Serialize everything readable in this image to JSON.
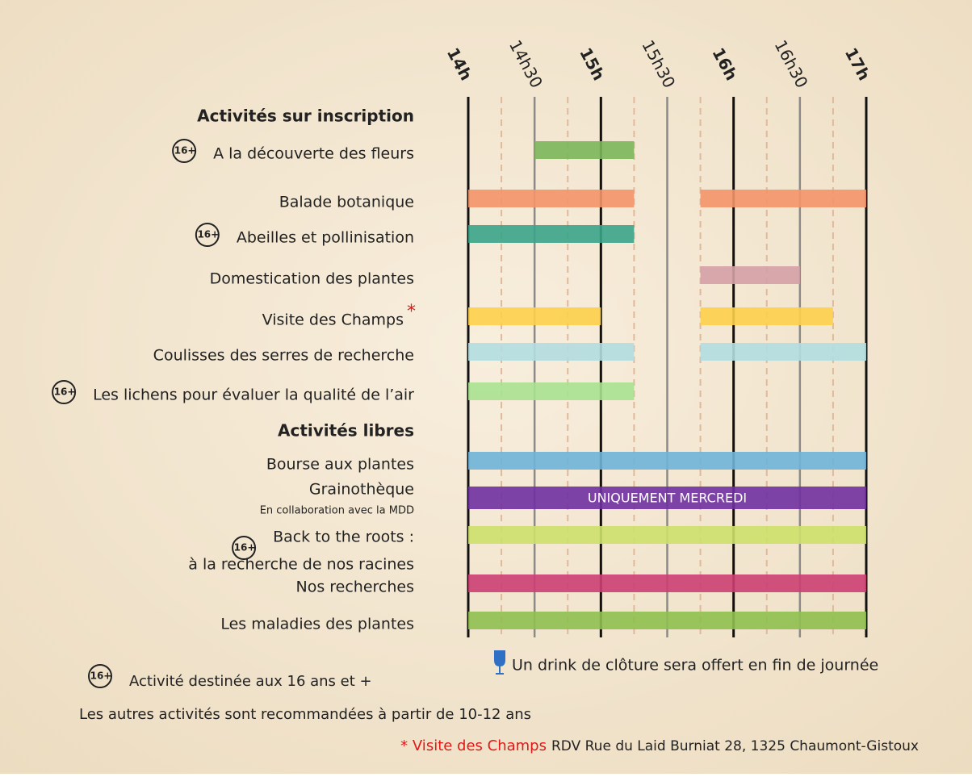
{
  "chart_data": {
    "type": "gantt",
    "xlim": [
      14,
      17
    ],
    "xticks": [
      {
        "value": 14,
        "label": "14h"
      },
      {
        "value": 14.5,
        "label": "14h30"
      },
      {
        "value": 15,
        "label": "15h"
      },
      {
        "value": 15.5,
        "label": "15h30"
      },
      {
        "value": 16,
        "label": "16h"
      },
      {
        "value": 16.5,
        "label": "16h30"
      },
      {
        "value": 17,
        "label": "17h"
      }
    ],
    "minor_xticks": [
      14.25,
      14.75,
      15.25,
      15.75,
      16.25,
      16.75
    ],
    "sections": [
      "Activités sur inscription",
      "Activités libres"
    ],
    "badge_label": "16+",
    "tasks": [
      {
        "section": 0,
        "label": "A la découverte des fleurs",
        "age_16_plus": true,
        "color": "#7cb65a",
        "segments": [
          [
            14.5,
            15.25
          ]
        ]
      },
      {
        "section": 0,
        "label": "Balade botanique",
        "color": "#f4956a",
        "segments": [
          [
            14,
            15.25
          ],
          [
            15.75,
            17
          ]
        ]
      },
      {
        "section": 0,
        "label": "Abeilles et pollinisation",
        "age_16_plus": true,
        "color": "#3aa488",
        "segments": [
          [
            14,
            15.25
          ]
        ]
      },
      {
        "section": 0,
        "label": "Domestication des plantes",
        "color": "#d4a0a6",
        "segments": [
          [
            15.75,
            16.5
          ]
        ]
      },
      {
        "section": 0,
        "label": "Visite des Champs",
        "marker": "*",
        "color": "#fdd04a",
        "segments": [
          [
            14,
            15
          ],
          [
            15.75,
            16.75
          ]
        ]
      },
      {
        "section": 0,
        "label": "Coulisses des serres de recherche",
        "color": "#b2dde0",
        "segments": [
          [
            14,
            15.25
          ],
          [
            15.75,
            17
          ]
        ]
      },
      {
        "section": 0,
        "label": "Les lichens pour évaluer la qualité de l’air",
        "age_16_plus": true,
        "color": "#a8e190",
        "segments": [
          [
            14,
            15.25
          ]
        ]
      },
      {
        "section": 1,
        "label": "Bourse aux plantes",
        "color": "#6fb2d8",
        "segments": [
          [
            14,
            17
          ]
        ]
      },
      {
        "section": 1,
        "label": "Grainothèque",
        "note": "En collaboration avec la MDD",
        "bar_text": "UNIQUEMENT MERCREDI",
        "color": "#7030a0",
        "segments": [
          [
            14,
            17
          ]
        ]
      },
      {
        "section": 1,
        "label": "Back to the roots :",
        "label2": "à la recherche de nos racines",
        "age_16_plus": true,
        "color": "#cde06a",
        "segments": [
          [
            14,
            17
          ]
        ]
      },
      {
        "section": 1,
        "label": "Nos recherches",
        "color": "#cc3f73",
        "segments": [
          [
            14,
            17
          ]
        ]
      },
      {
        "section": 1,
        "label": "Les maladies des plantes",
        "color": "#8fbf4f",
        "segments": [
          [
            14,
            17
          ]
        ]
      }
    ],
    "drink_note": "Un drink de clôture sera offert en fin de journée",
    "badge_note": "Activité destinée aux 16 ans et +",
    "age_note": "Les autres activités sont recommandées à partir de 10-12 ans",
    "footnote_name": "* Visite des Champs",
    "footnote_text": "RDV Rue du Laid Burniat 28, 1325 Chaumont-Gistoux"
  }
}
